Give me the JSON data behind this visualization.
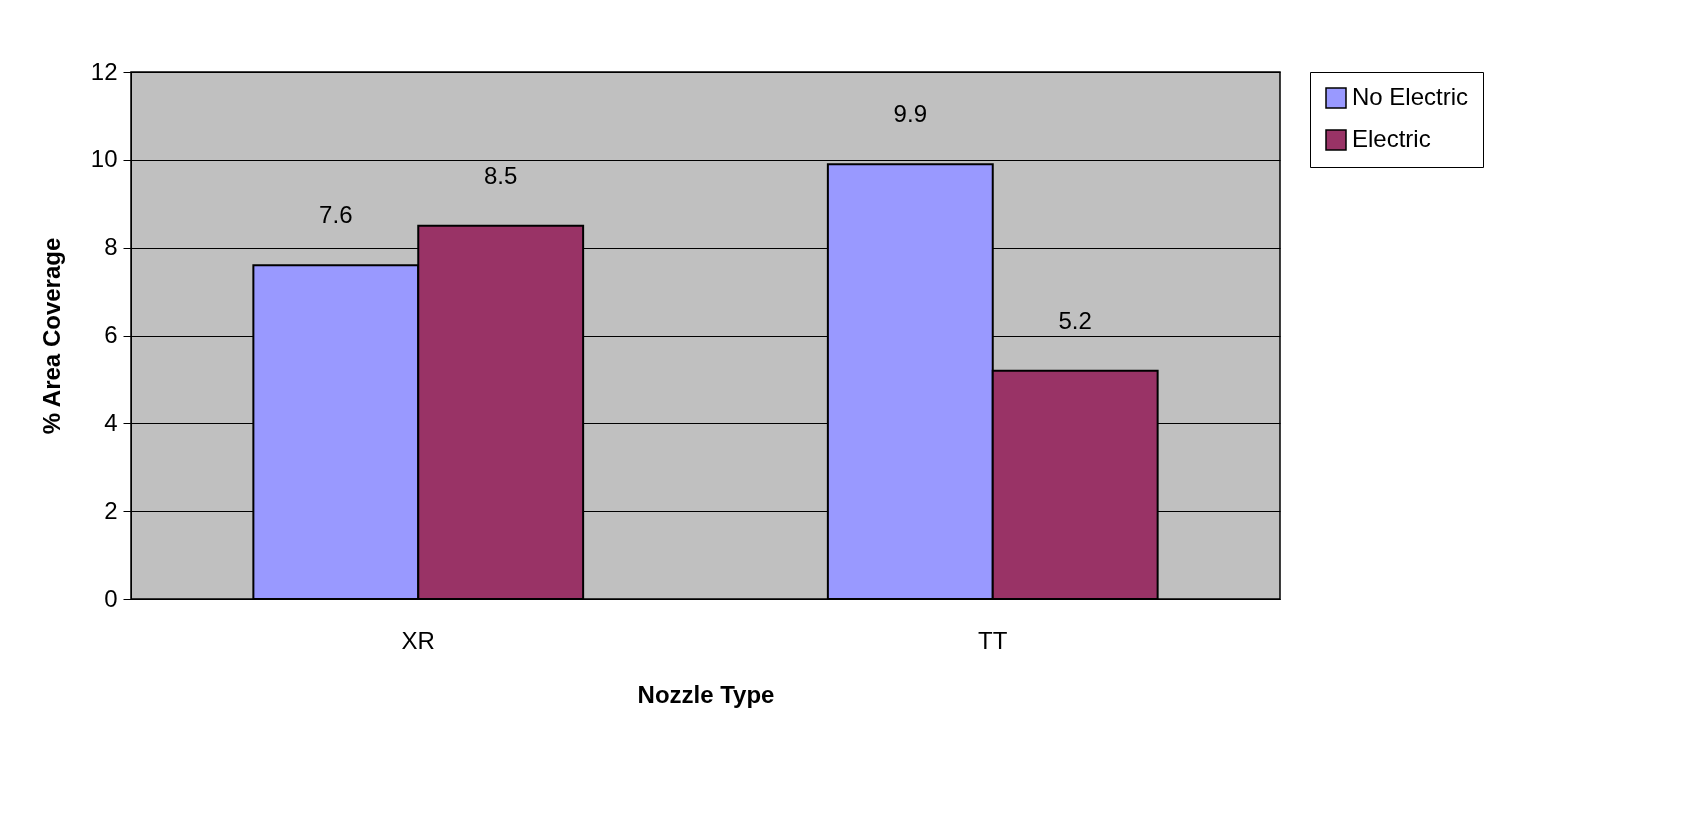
{
  "chart_data": {
    "type": "bar",
    "xlabel": "Nozzle Type",
    "ylabel": "% Area Coverage",
    "categories": [
      "XR",
      "TT"
    ],
    "series": [
      {
        "name": "No Electric",
        "color": "#9999ff",
        "values": [
          7.6,
          9.9
        ]
      },
      {
        "name": "Electric",
        "color": "#993366",
        "values": [
          8.5,
          5.2
        ]
      }
    ],
    "ylim": [
      0,
      12
    ],
    "yticks": [
      0,
      2,
      4,
      6,
      8,
      10,
      12
    ],
    "grid": "y",
    "legend": "right",
    "data_labels": true
  }
}
